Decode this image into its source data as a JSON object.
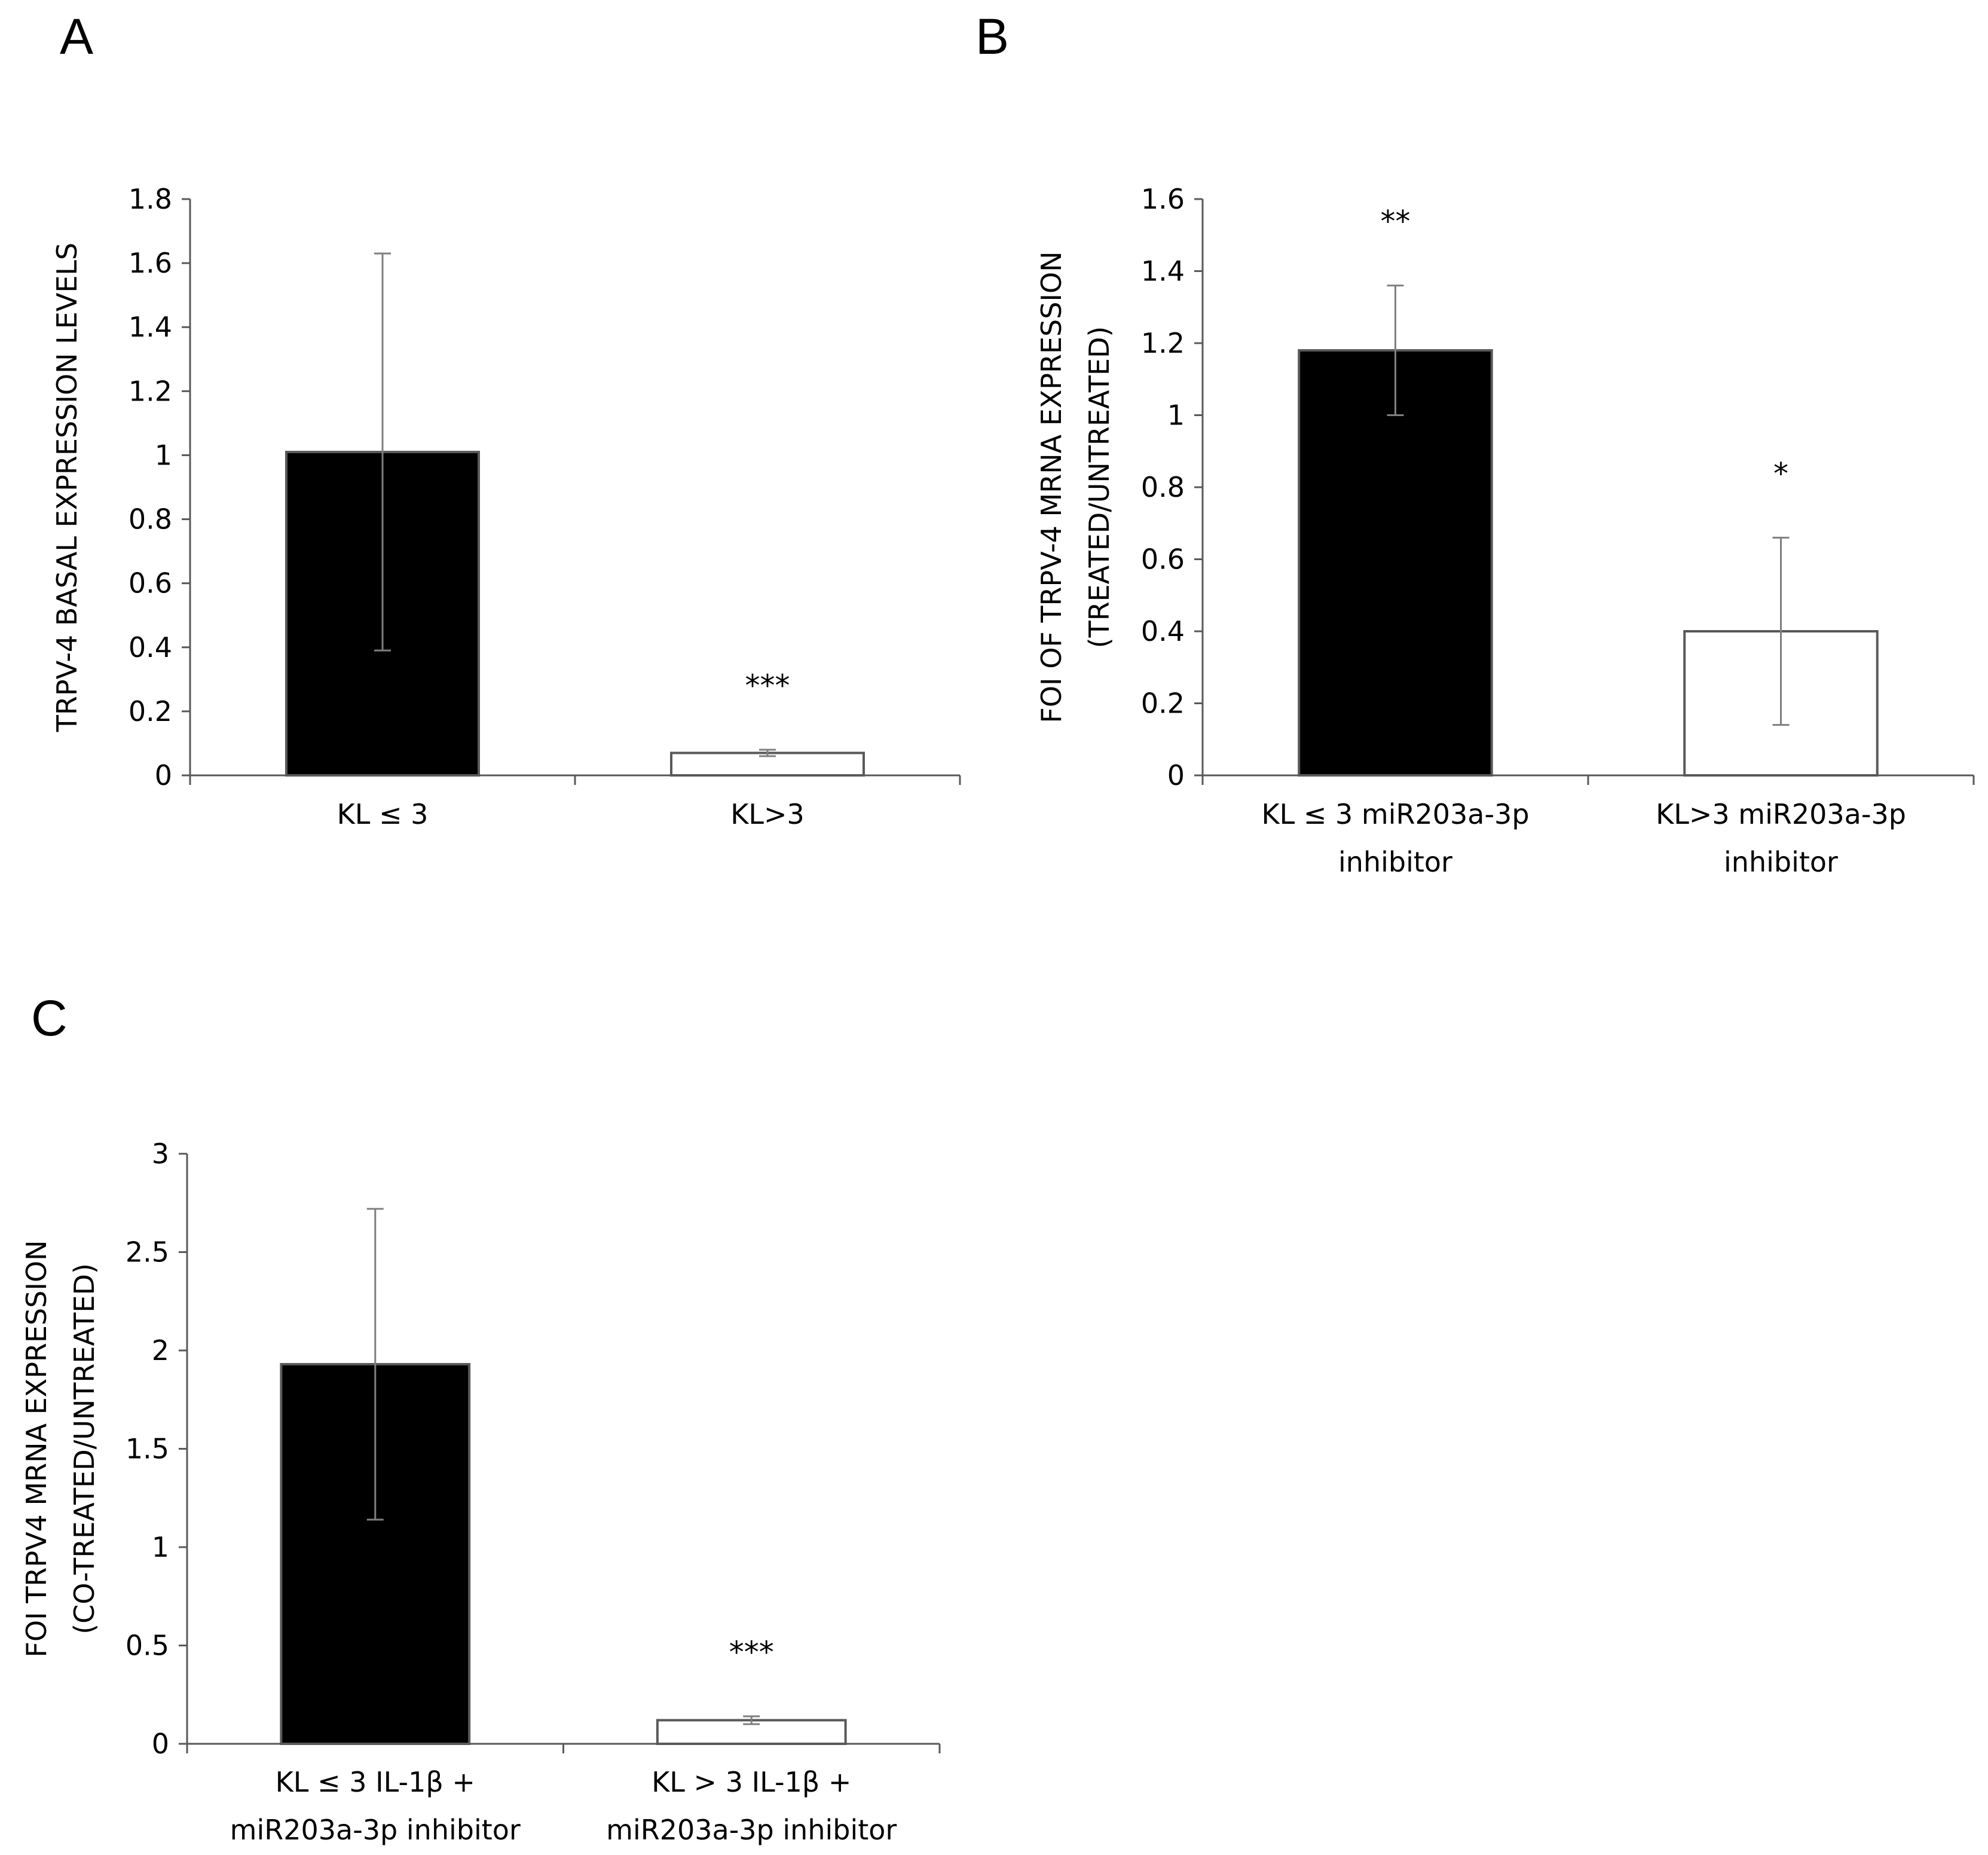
{
  "chart_data": [
    {
      "panel": "A",
      "type": "bar",
      "title": "",
      "xlabel": "",
      "ylabel": "TRPV-4 BASAL EXPRESSION LEVELS",
      "ylabel_lines": [
        "TRPV-4 BASAL EXPRESSION LEVELS"
      ],
      "ylim": [
        0,
        1.8
      ],
      "yticks": [
        "0",
        "0.2",
        "0.4",
        "0.6",
        "0.8",
        "1",
        "1.2",
        "1.4",
        "1.6",
        "1.8"
      ],
      "categories": [
        "KL ≤ 3",
        "KL>3"
      ],
      "category_lines": [
        [
          "KL ≤ 3"
        ],
        [
          "KL>3"
        ]
      ],
      "values": [
        1.01,
        0.07
      ],
      "errors": [
        0.62,
        0.01
      ],
      "bar_fill": [
        "#000000",
        "#ffffff"
      ],
      "significance": [
        "",
        "***"
      ],
      "grid": false
    },
    {
      "panel": "B",
      "type": "bar",
      "title": "",
      "xlabel": "",
      "ylabel": "FOI OF TRPV-4 MRNA EXPRESSION (TREATED/UNTREATED)",
      "ylabel_lines": [
        "FOI OF TRPV-4 MRNA EXPRESSION",
        "(TREATED/UNTREATED)"
      ],
      "ylim": [
        0,
        1.6
      ],
      "yticks": [
        "0",
        "0.2",
        "0.4",
        "0.6",
        "0.8",
        "1",
        "1.2",
        "1.4",
        "1.6"
      ],
      "categories": [
        "KL ≤ 3 miR203a-3p inhibitor",
        "KL>3 miR203a-3p inhibitor"
      ],
      "category_lines": [
        [
          "KL ≤ 3 miR203a-3p",
          "inhibitor"
        ],
        [
          "KL>3 miR203a-3p",
          "inhibitor"
        ]
      ],
      "values": [
        1.18,
        0.4
      ],
      "errors": [
        0.18,
        0.26
      ],
      "bar_fill": [
        "#000000",
        "#ffffff"
      ],
      "significance": [
        "**",
        "*"
      ],
      "grid": false
    },
    {
      "panel": "C",
      "type": "bar",
      "title": "",
      "xlabel": "",
      "ylabel": "FOI TRPV4 MRNA EXPRESSION (CO-TREATED/UNTREATED)",
      "ylabel_lines": [
        "FOI TRPV4 MRNA EXPRESSION",
        "(CO-TREATED/UNTREATED)"
      ],
      "ylim": [
        0,
        3
      ],
      "yticks": [
        "0",
        "0.5",
        "1",
        "1.5",
        "2",
        "2.5",
        "3"
      ],
      "categories": [
        "KL ≤ 3 IL-1β + miR203a-3p inhibitor",
        "KL > 3 IL-1β + miR203a-3p inhibitor"
      ],
      "category_lines": [
        [
          "KL ≤ 3 IL-1β +",
          "miR203a-3p inhibitor"
        ],
        [
          "KL > 3 IL-1β +",
          "miR203a-3p inhibitor"
        ]
      ],
      "values": [
        1.93,
        0.12
      ],
      "errors": [
        0.79,
        0.02
      ],
      "bar_fill": [
        "#000000",
        "#ffffff"
      ],
      "significance": [
        "",
        "***"
      ],
      "grid": false
    }
  ],
  "colors": {
    "axis": "#595959",
    "bar_edge": "#595959",
    "error_bar": "#7f7f7f",
    "text": "#000000"
  }
}
